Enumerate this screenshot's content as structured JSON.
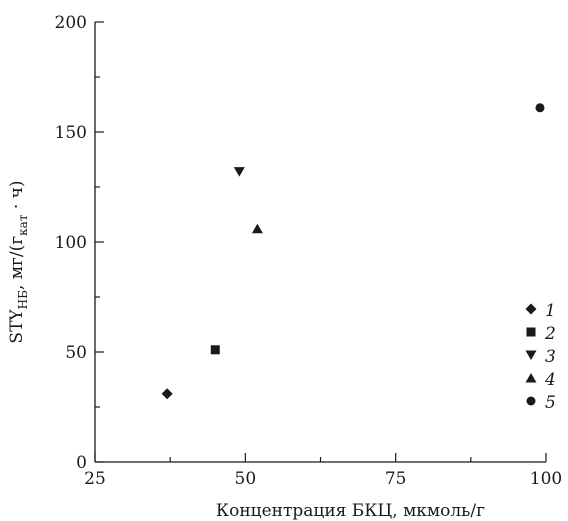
{
  "chart_data": {
    "type": "scatter",
    "xlabel": "Концентрация БКЦ, мкмоль/г",
    "ylabel": {
      "prefix": "STY",
      "sub1": "НБ",
      "mid": ", мг/(г",
      "sub2": "кат",
      "suffix": " · ч)"
    },
    "xlim": [
      25,
      100
    ],
    "ylim": [
      0,
      200
    ],
    "x_ticks": [
      25,
      50,
      75,
      100
    ],
    "x_minor_ticks": [
      37.5,
      62.5,
      87.5
    ],
    "y_ticks": [
      0,
      50,
      100,
      150,
      200
    ],
    "y_minor_ticks": [
      25,
      75,
      125,
      175
    ],
    "grid": false,
    "legend_position": "bottom-right",
    "series": [
      {
        "name": "1",
        "marker": "diamond",
        "x": [
          37
        ],
        "y": [
          31
        ]
      },
      {
        "name": "2",
        "marker": "square",
        "x": [
          45
        ],
        "y": [
          51
        ]
      },
      {
        "name": "3",
        "marker": "triangle-down",
        "x": [
          49
        ],
        "y": [
          132
        ]
      },
      {
        "name": "4",
        "marker": "triangle-up",
        "x": [
          52
        ],
        "y": [
          106
        ]
      },
      {
        "name": "5",
        "marker": "circle",
        "x": [
          99
        ],
        "y": [
          161
        ]
      }
    ],
    "marker_color": "#1a1a1a"
  }
}
